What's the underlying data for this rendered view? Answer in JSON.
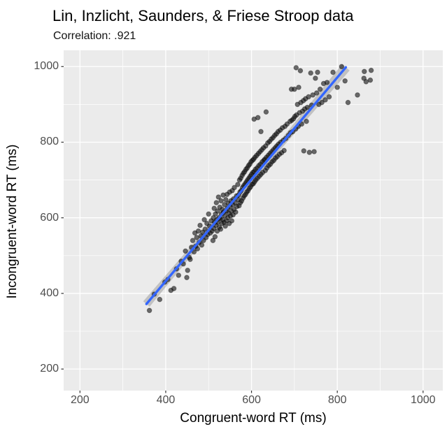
{
  "chart_data": {
    "type": "scatter",
    "title": "Lin, Inzlicht, Saunders, & Friese Stroop data",
    "subtitle": "Correlation: .921",
    "correlation": 0.921,
    "xlabel": "Congruent-word RT (ms)",
    "ylabel": "Incongruent-word RT (ms)",
    "x_ticks": [
      200,
      400,
      600,
      800,
      1000
    ],
    "y_ticks": [
      200,
      400,
      600,
      800,
      1000
    ],
    "x_minor_ticks": [
      300,
      500,
      700,
      900
    ],
    "y_minor_ticks": [
      300,
      500,
      700,
      900
    ],
    "x_domain": [
      162,
      1046
    ],
    "y_domain": [
      143,
      1043
    ],
    "grid": "white major and minor gridlines on gray panel",
    "legend": "none",
    "panel_bg": "#EBEBEB",
    "gridline_color": "#FFFFFF",
    "tick_label_color": "#4D4D4D",
    "point_fill": "rgba(15,15,15,0.60)",
    "point_stroke": "rgba(0,0,0,0.35)",
    "smooth_line": {
      "type": "linear",
      "color": "#3366FF",
      "x_start": 355,
      "y_start": 372,
      "x_end": 820,
      "y_end": 998,
      "ribbon_color": "rgba(130,130,130,0.40)"
    },
    "points": [
      [
        362,
        355
      ],
      [
        373,
        398
      ],
      [
        386,
        384
      ],
      [
        398,
        430
      ],
      [
        405,
        437
      ],
      [
        412,
        408
      ],
      [
        419,
        413
      ],
      [
        425,
        465
      ],
      [
        430,
        448
      ],
      [
        436,
        485
      ],
      [
        441,
        478
      ],
      [
        446,
        512
      ],
      [
        451,
        461
      ],
      [
        455,
        495
      ],
      [
        449,
        442
      ],
      [
        457,
        490
      ],
      [
        460,
        522
      ],
      [
        463,
        540
      ],
      [
        466,
        510
      ],
      [
        468,
        560
      ],
      [
        470,
        525
      ],
      [
        472,
        548
      ],
      [
        474,
        518
      ],
      [
        476,
        565
      ],
      [
        478,
        535
      ],
      [
        480,
        580
      ],
      [
        482,
        552
      ],
      [
        484,
        528
      ],
      [
        486,
        562
      ],
      [
        488,
        540
      ],
      [
        490,
        595
      ],
      [
        492,
        570
      ],
      [
        494,
        548
      ],
      [
        496,
        585
      ],
      [
        498,
        556
      ],
      [
        500,
        610
      ],
      [
        502,
        578
      ],
      [
        504,
        560
      ],
      [
        506,
        592
      ],
      [
        508,
        565
      ],
      [
        510,
        540
      ],
      [
        511,
        600
      ],
      [
        512,
        572
      ],
      [
        513,
        625
      ],
      [
        514,
        588
      ],
      [
        515,
        550
      ],
      [
        516,
        610
      ],
      [
        517,
        580
      ],
      [
        518,
        640
      ],
      [
        519,
        595
      ],
      [
        520,
        565
      ],
      [
        521,
        618
      ],
      [
        522,
        588
      ],
      [
        523,
        655
      ],
      [
        524,
        600
      ],
      [
        525,
        575
      ],
      [
        526,
        628
      ],
      [
        527,
        598
      ],
      [
        528,
        570
      ],
      [
        529,
        645
      ],
      [
        530,
        610
      ],
      [
        531,
        585
      ],
      [
        532,
        622
      ],
      [
        533,
        595
      ],
      [
        534,
        660
      ],
      [
        535,
        615
      ],
      [
        536,
        588
      ],
      [
        537,
        635
      ],
      [
        538,
        605
      ],
      [
        539,
        578
      ],
      [
        540,
        648
      ],
      [
        541,
        618
      ],
      [
        542,
        592
      ],
      [
        543,
        662
      ],
      [
        544,
        625
      ],
      [
        545,
        600
      ],
      [
        546,
        638
      ],
      [
        547,
        612
      ],
      [
        548,
        585
      ],
      [
        549,
        668
      ],
      [
        550,
        630
      ],
      [
        551,
        605
      ],
      [
        552,
        645
      ],
      [
        553,
        618
      ],
      [
        554,
        592
      ],
      [
        555,
        672
      ],
      [
        556,
        635
      ],
      [
        557,
        608
      ],
      [
        558,
        650
      ],
      [
        559,
        622
      ],
      [
        560,
        680
      ],
      [
        562,
        640
      ],
      [
        563,
        615
      ],
      [
        565,
        658
      ],
      [
        566,
        630
      ],
      [
        568,
        688
      ],
      [
        569,
        648
      ],
      [
        570,
        660
      ],
      [
        571,
        632
      ],
      [
        572,
        700
      ],
      [
        573,
        668
      ],
      [
        574,
        640
      ],
      [
        575,
        705
      ],
      [
        576,
        672
      ],
      [
        577,
        645
      ],
      [
        578,
        712
      ],
      [
        579,
        680
      ],
      [
        580,
        652
      ],
      [
        581,
        718
      ],
      [
        582,
        685
      ],
      [
        583,
        658
      ],
      [
        584,
        722
      ],
      [
        585,
        690
      ],
      [
        586,
        662
      ],
      [
        587,
        728
      ],
      [
        588,
        695
      ],
      [
        589,
        668
      ],
      [
        590,
        732
      ],
      [
        591,
        700
      ],
      [
        592,
        672
      ],
      [
        593,
        738
      ],
      [
        594,
        705
      ],
      [
        595,
        678
      ],
      [
        596,
        742
      ],
      [
        597,
        710
      ],
      [
        598,
        682
      ],
      [
        599,
        748
      ],
      [
        600,
        715
      ],
      [
        601,
        688
      ],
      [
        602,
        752
      ],
      [
        603,
        720
      ],
      [
        604,
        690
      ],
      [
        605,
        755
      ],
      [
        606,
        722
      ],
      [
        607,
        695
      ],
      [
        608,
        760
      ],
      [
        609,
        728
      ],
      [
        610,
        700
      ],
      [
        612,
        765
      ],
      [
        613,
        732
      ],
      [
        614,
        705
      ],
      [
        616,
        770
      ],
      [
        617,
        738
      ],
      [
        618,
        710
      ],
      [
        620,
        775
      ],
      [
        621,
        742
      ],
      [
        622,
        715
      ],
      [
        624,
        780
      ],
      [
        625,
        748
      ],
      [
        626,
        720
      ],
      [
        628,
        785
      ],
      [
        629,
        752
      ],
      [
        606,
        861
      ],
      [
        615,
        865
      ],
      [
        622,
        828
      ],
      [
        631,
        755
      ],
      [
        632,
        725
      ],
      [
        633,
        790
      ],
      [
        634,
        880
      ],
      [
        635,
        760
      ],
      [
        636,
        732
      ],
      [
        638,
        798
      ],
      [
        639,
        765
      ],
      [
        640,
        738
      ],
      [
        642,
        802
      ],
      [
        643,
        770
      ],
      [
        644,
        742
      ],
      [
        646,
        808
      ],
      [
        647,
        775
      ],
      [
        648,
        748
      ],
      [
        650,
        812
      ],
      [
        651,
        780
      ],
      [
        652,
        752
      ],
      [
        654,
        818
      ],
      [
        655,
        785
      ],
      [
        656,
        758
      ],
      [
        658,
        822
      ],
      [
        659,
        790
      ],
      [
        660,
        762
      ],
      [
        662,
        828
      ],
      [
        663,
        795
      ],
      [
        665,
        768
      ],
      [
        667,
        832
      ],
      [
        668,
        800
      ],
      [
        670,
        772
      ],
      [
        672,
        838
      ],
      [
        674,
        805
      ],
      [
        676,
        778
      ],
      [
        678,
        842
      ],
      [
        680,
        810
      ],
      [
        683,
        848
      ],
      [
        686,
        818
      ],
      [
        690,
        855
      ],
      [
        691,
        825
      ],
      [
        693,
        940
      ],
      [
        694,
        858
      ],
      [
        696,
        828
      ],
      [
        698,
        862
      ],
      [
        700,
        940
      ],
      [
        701,
        868
      ],
      [
        703,
        835
      ],
      [
        704,
        997
      ],
      [
        705,
        872
      ],
      [
        707,
        900
      ],
      [
        709,
        842
      ],
      [
        710,
        945
      ],
      [
        712,
        878
      ],
      [
        714,
        989
      ],
      [
        715,
        905
      ],
      [
        717,
        848
      ],
      [
        719,
        882
      ],
      [
        721,
        910
      ],
      [
        722,
        777
      ],
      [
        724,
        888
      ],
      [
        726,
        915
      ],
      [
        728,
        855
      ],
      [
        730,
        892
      ],
      [
        733,
        920
      ],
      [
        735,
        773
      ],
      [
        738,
        983
      ],
      [
        740,
        898
      ],
      [
        743,
        925
      ],
      [
        746,
        775
      ],
      [
        749,
        969
      ],
      [
        752,
        930
      ],
      [
        754,
        985
      ],
      [
        757,
        900
      ],
      [
        760,
        940
      ],
      [
        764,
        905
      ],
      [
        768,
        955
      ],
      [
        772,
        912
      ],
      [
        776,
        958
      ],
      [
        781,
        920
      ],
      [
        790,
        985
      ],
      [
        800,
        945
      ],
      [
        810,
        1000
      ],
      [
        818,
        962
      ],
      [
        825,
        905
      ],
      [
        847,
        925
      ],
      [
        862,
        969
      ],
      [
        863,
        987
      ],
      [
        867,
        960
      ],
      [
        877,
        964
      ],
      [
        879,
        990
      ]
    ]
  }
}
